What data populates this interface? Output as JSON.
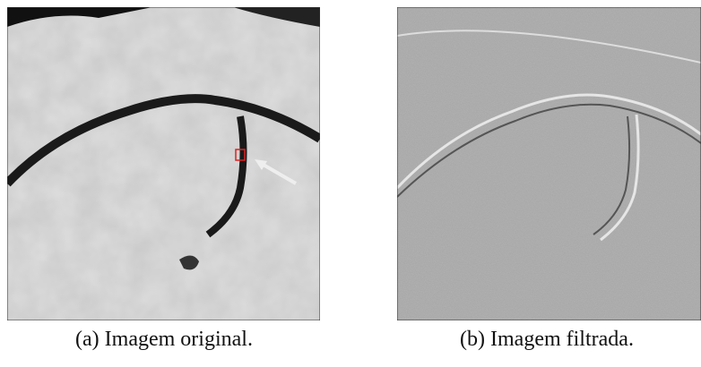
{
  "figure": {
    "panels": [
      {
        "caption": "(a) Imagem original."
      },
      {
        "caption": "(b) Imagem filtrada."
      }
    ]
  }
}
